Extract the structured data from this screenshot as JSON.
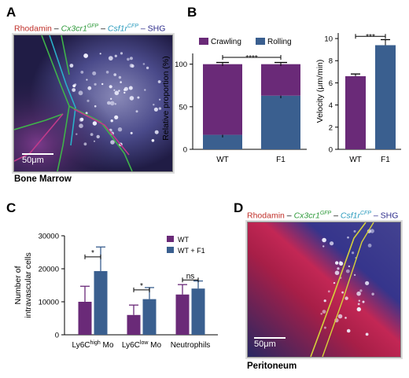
{
  "panels": {
    "a": {
      "letter": "A",
      "tissue": "Bone Marrow",
      "scale": "50μm",
      "caption": [
        {
          "text": "Rhodamin",
          "color": "#c0302a",
          "italic": false
        },
        {
          "text": " – ",
          "color": "#000000",
          "italic": false
        },
        {
          "text": "Cx3cr1",
          "color": "#2f9a3b",
          "italic": true
        },
        {
          "text": "GFP",
          "color": "#2f9a3b",
          "italic": true,
          "sup": true
        },
        {
          "text": " – ",
          "color": "#000000",
          "italic": false
        },
        {
          "text": "Csf1r",
          "color": "#2a9bbd",
          "italic": true
        },
        {
          "text": "CFP",
          "color": "#2a9bbd",
          "italic": true,
          "sup": true
        },
        {
          "text": " – SHG",
          "color": "#2b2a8a",
          "italic": false
        }
      ]
    },
    "b": {
      "letter": "B"
    },
    "c": {
      "letter": "C"
    },
    "d": {
      "letter": "D",
      "tissue": "Peritoneum",
      "scale": "50μm",
      "caption": [
        {
          "text": "Rhodamin",
          "color": "#c0302a",
          "italic": false
        },
        {
          "text": " – ",
          "color": "#000000",
          "italic": false
        },
        {
          "text": "Cx3cr1",
          "color": "#2f9a3b",
          "italic": true
        },
        {
          "text": "GFP",
          "color": "#2f9a3b",
          "italic": true,
          "sup": true
        },
        {
          "text": " – ",
          "color": "#000000",
          "italic": false
        },
        {
          "text": "Csf1r",
          "color": "#2a9bbd",
          "italic": true
        },
        {
          "text": "CFP",
          "color": "#2a9bbd",
          "italic": true,
          "sup": true
        },
        {
          "text": " – SHG",
          "color": "#2b2a8a",
          "italic": false
        }
      ]
    }
  },
  "colors": {
    "purple": "#6a2a78",
    "blue": "#3a5f8f"
  },
  "chart_data": [
    {
      "id": "B1",
      "type": "bar",
      "stacked": true,
      "categories": [
        "WT",
        "F1"
      ],
      "series": [
        {
          "name": "Rolling",
          "values": [
            17,
            63
          ],
          "errors": [
            3,
            3
          ],
          "color": "#3a5f8f"
        },
        {
          "name": "Crawling",
          "values": [
            83,
            37
          ],
          "errors": [
            2,
            2
          ],
          "color": "#6a2a78"
        }
      ],
      "ylabel": "Relative proportion (%)",
      "ylim": [
        0,
        120
      ],
      "yticks": [
        0,
        50,
        100
      ],
      "legend": [
        "Crawling",
        "Rolling"
      ],
      "legend_position": "top",
      "significance": [
        {
          "from": "WT",
          "to": "F1",
          "label": "****"
        }
      ]
    },
    {
      "id": "B2",
      "type": "bar",
      "categories": [
        "WT",
        "F1"
      ],
      "values": [
        6.6,
        9.4
      ],
      "errors": [
        0.2,
        0.5
      ],
      "colors": [
        "#6a2a78",
        "#3a5f8f"
      ],
      "ylabel": "Velocity (μm/min)",
      "ylim": [
        0,
        10.5
      ],
      "yticks": [
        0,
        2,
        4,
        6,
        8,
        10
      ],
      "significance": [
        {
          "from": "WT",
          "to": "F1",
          "label": "***"
        }
      ]
    },
    {
      "id": "C",
      "type": "bar",
      "categories": [
        "Ly6C high Mo",
        "Ly6C low Mo",
        "Neutrophils"
      ],
      "category_labels": [
        {
          "main": "Ly6C",
          "sup": "high",
          "tail": " Mo"
        },
        {
          "main": "Ly6C",
          "sup": "low",
          "tail": " Mo"
        },
        {
          "main": "Neutrophils",
          "sup": "",
          "tail": ""
        }
      ],
      "series": [
        {
          "name": "WT",
          "values": [
            10000,
            6000,
            12200
          ],
          "errors": [
            4700,
            3000,
            3000
          ],
          "color": "#6a2a78"
        },
        {
          "name": "WT + F1",
          "values": [
            19300,
            10800,
            14000
          ],
          "errors": [
            7300,
            3500,
            2300
          ],
          "color": "#3a5f8f"
        }
      ],
      "ylabel_lines": [
        "Number of",
        "intravascular cells"
      ],
      "ylim": [
        0,
        30000
      ],
      "yticks": [
        0,
        10000,
        20000,
        30000
      ],
      "legend_position": "top-right",
      "significance": [
        {
          "category": 0,
          "label": "*"
        },
        {
          "category": 1,
          "label": "*"
        },
        {
          "category": 2,
          "label": "ns"
        }
      ]
    }
  ]
}
